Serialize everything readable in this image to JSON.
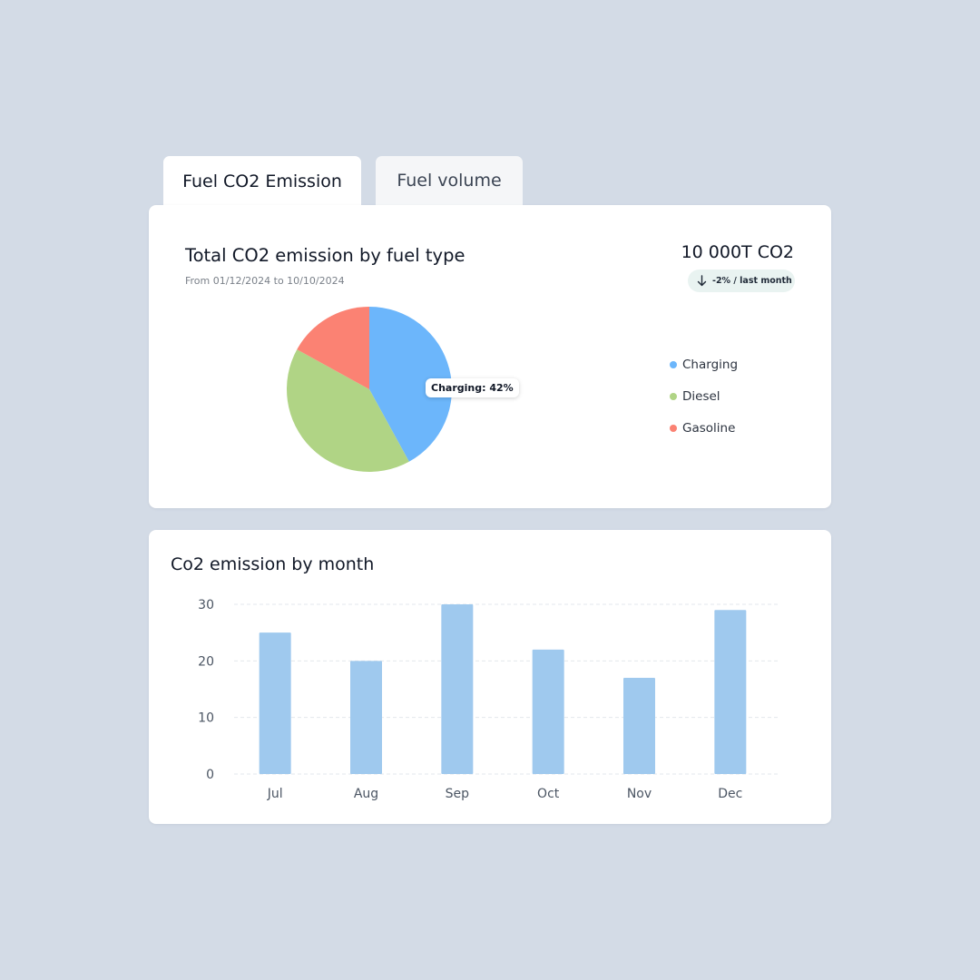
{
  "tabs": [
    {
      "label": "Fuel CO2 Emission",
      "active": true
    },
    {
      "label": "Fuel volume",
      "active": false
    }
  ],
  "summary": {
    "title": "Total CO2 emission by fuel type",
    "date_range": "From 01/12/2024 to 10/10/2024",
    "total": "10 000T CO2",
    "change": "-2% / last month",
    "change_icon": "arrow-down-icon"
  },
  "tooltip": "Charging: 42%",
  "colors": {
    "charging": "#6cb6fb",
    "diesel": "#b0d485",
    "gasoline": "#fb8273",
    "bars": "#9fc9ee",
    "grid": "#e3e7ec",
    "tick": "#4b5563"
  },
  "chart_data": [
    {
      "type": "pie",
      "title": "Total CO2 emission by fuel type",
      "labels": [
        "Charging",
        "Diesel",
        "Gasoline"
      ],
      "values": [
        42,
        41,
        17
      ],
      "colors": [
        "#6cb6fb",
        "#b0d485",
        "#fb8273"
      ],
      "legend": "right",
      "highlight": "Charging: 42%"
    },
    {
      "type": "bar",
      "title": "Co2 emission by month",
      "categories": [
        "Jul",
        "Aug",
        "Sep",
        "Oct",
        "Nov",
        "Dec"
      ],
      "values": [
        25,
        20,
        30,
        22,
        17,
        29
      ],
      "ylim": [
        0,
        30
      ],
      "yticks": [
        0,
        10,
        20,
        30
      ],
      "grid": true,
      "xlabel": "",
      "ylabel": ""
    }
  ]
}
